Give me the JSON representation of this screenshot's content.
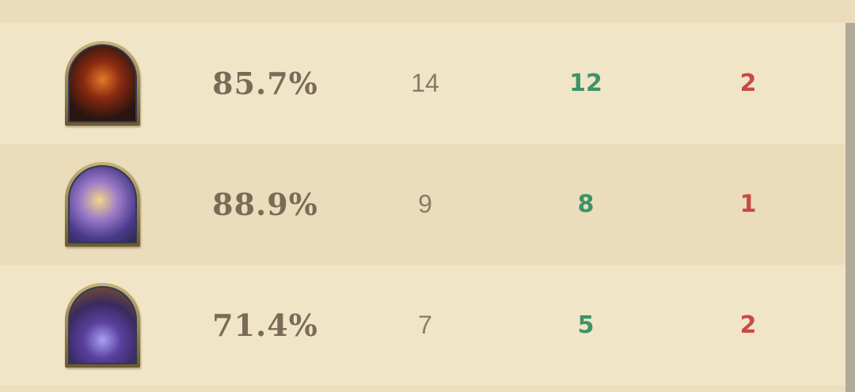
{
  "colors": {
    "wins": "#3c9467",
    "losses": "#c84a46",
    "winrate": "#7a6b58"
  },
  "rows": [
    {
      "hero_icon": "hero-portrait-orc-warrior",
      "winrate": "85.7%",
      "games": "14",
      "wins": "12",
      "losses": "2"
    },
    {
      "hero_icon": "hero-portrait-paladin",
      "winrate": "88.9%",
      "games": "9",
      "wins": "8",
      "losses": "1"
    },
    {
      "hero_icon": "hero-portrait-warlock",
      "winrate": "71.4%",
      "games": "7",
      "wins": "5",
      "losses": "2"
    }
  ]
}
